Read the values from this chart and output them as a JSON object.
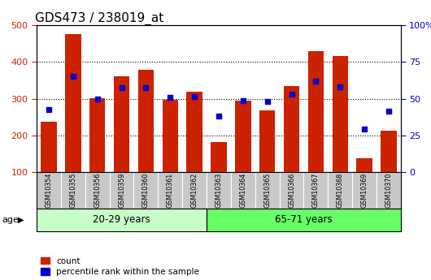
{
  "title": "GDS473 / 238019_at",
  "samples": [
    "GSM10354",
    "GSM10355",
    "GSM10356",
    "GSM10359",
    "GSM10360",
    "GSM10361",
    "GSM10362",
    "GSM10363",
    "GSM10364",
    "GSM10365",
    "GSM10366",
    "GSM10367",
    "GSM10368",
    "GSM10369",
    "GSM10370"
  ],
  "counts": [
    237,
    475,
    302,
    362,
    378,
    298,
    318,
    182,
    295,
    268,
    335,
    430,
    416,
    138,
    212
  ],
  "percentile_vals": [
    270,
    360,
    300,
    330,
    330,
    303,
    305,
    252,
    295,
    293,
    313,
    348,
    333,
    218,
    267
  ],
  "group1_label": "20-29 years",
  "group2_label": "65-71 years",
  "group1_count": 7,
  "group2_count": 8,
  "age_label": "age",
  "ylim_left": [
    100,
    500
  ],
  "ylim_right": [
    0,
    100
  ],
  "yticks_left": [
    100,
    200,
    300,
    400,
    500
  ],
  "yticks_right": [
    0,
    25,
    50,
    75,
    100
  ],
  "bar_color": "#cc2200",
  "dot_color": "#0000cc",
  "group1_bg": "#c8ffc8",
  "group2_bg": "#66ff66",
  "tick_bg": "#c8c8c8",
  "legend_count_label": "count",
  "legend_pct_label": "percentile rank within the sample",
  "title_fontsize": 11,
  "axis_fontsize": 8,
  "label_fontsize": 8
}
